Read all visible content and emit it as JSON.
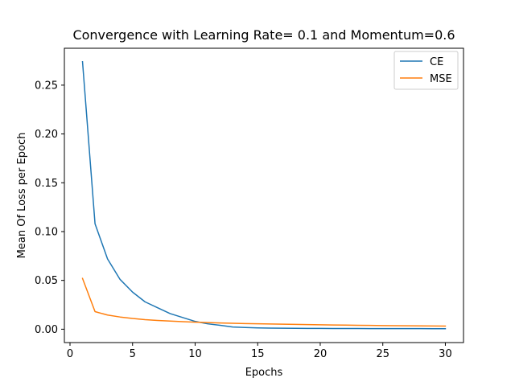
{
  "chart_data": {
    "type": "line",
    "title": "Convergence with Learning Rate= 0.1 and Momentum=0.6",
    "xlabel": "Epochs",
    "ylabel": "Mean Of Loss per Epoch",
    "xlim": [
      -0.45,
      31.45
    ],
    "ylim": [
      -0.0137,
      0.2878
    ],
    "xticks": [
      0,
      5,
      10,
      15,
      20,
      25,
      30
    ],
    "xtick_labels": [
      "0",
      "5",
      "10",
      "15",
      "20",
      "25",
      "30"
    ],
    "yticks": [
      0.0,
      0.05,
      0.1,
      0.15,
      0.2,
      0.25
    ],
    "ytick_labels": [
      "0.00",
      "0.05",
      "0.10",
      "0.15",
      "0.20",
      "0.25"
    ],
    "grid": false,
    "legend_position": "top-right",
    "x": [
      1,
      2,
      3,
      4,
      5,
      6,
      7,
      8,
      9,
      10,
      11,
      12,
      13,
      14,
      15,
      16,
      17,
      18,
      19,
      20,
      21,
      22,
      23,
      24,
      25,
      26,
      27,
      28,
      29,
      30
    ],
    "series": [
      {
        "name": "CE",
        "color": "#1f77b4",
        "values": [
          0.274,
          0.108,
          0.072,
          0.051,
          0.038,
          0.028,
          0.022,
          0.016,
          0.012,
          0.008,
          0.0055,
          0.004,
          0.0023,
          0.0017,
          0.0013,
          0.0011,
          0.001,
          0.0009,
          0.0008,
          0.0008,
          0.0007,
          0.0007,
          0.0007,
          0.0006,
          0.0006,
          0.0006,
          0.0006,
          0.0006,
          0.0005,
          0.0005
        ]
      },
      {
        "name": "MSE",
        "color": "#ff7f0e",
        "values": [
          0.052,
          0.018,
          0.0145,
          0.0125,
          0.011,
          0.0098,
          0.009,
          0.0083,
          0.0077,
          0.0072,
          0.0068,
          0.0064,
          0.0061,
          0.0058,
          0.0056,
          0.0053,
          0.0051,
          0.0049,
          0.0047,
          0.0045,
          0.0043,
          0.0042,
          0.004,
          0.0039,
          0.0037,
          0.0036,
          0.0035,
          0.0034,
          0.0033,
          0.0032
        ]
      }
    ]
  }
}
